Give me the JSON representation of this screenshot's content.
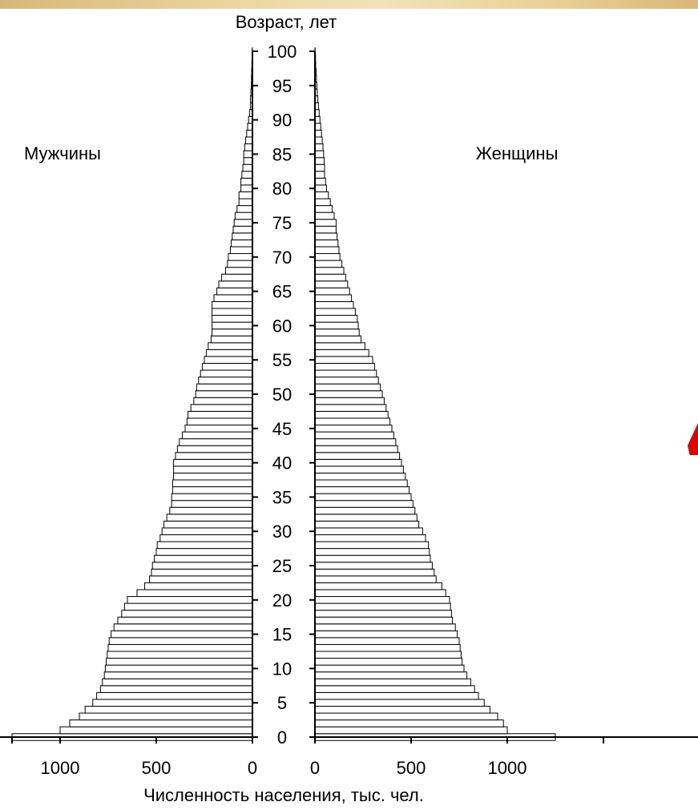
{
  "chart_data": {
    "type": "population-pyramid",
    "title": "Возраст, лет",
    "xlabel": "Численность населения, тыс. чел.",
    "male_label": "Мужчины",
    "female_label": "Женщины",
    "ages": [
      0,
      1,
      2,
      3,
      4,
      5,
      6,
      7,
      8,
      9,
      10,
      11,
      12,
      13,
      14,
      15,
      16,
      17,
      18,
      19,
      20,
      21,
      22,
      23,
      24,
      25,
      26,
      27,
      28,
      29,
      30,
      31,
      32,
      33,
      34,
      35,
      36,
      37,
      38,
      39,
      40,
      41,
      42,
      43,
      44,
      45,
      46,
      47,
      48,
      49,
      50,
      51,
      52,
      53,
      54,
      55,
      56,
      57,
      58,
      59,
      60,
      61,
      62,
      63,
      64,
      65,
      66,
      67,
      68,
      69,
      70,
      71,
      72,
      73,
      74,
      75,
      76,
      77,
      78,
      79,
      80,
      81,
      82,
      83,
      84,
      85,
      86,
      87,
      88,
      89,
      90,
      91,
      92,
      93,
      94,
      95,
      96,
      97,
      98,
      99,
      100
    ],
    "male": [
      1250,
      1000,
      950,
      900,
      870,
      830,
      810,
      790,
      780,
      770,
      765,
      760,
      755,
      750,
      745,
      735,
      720,
      700,
      680,
      665,
      650,
      600,
      560,
      535,
      525,
      520,
      510,
      500,
      495,
      480,
      470,
      460,
      445,
      430,
      420,
      420,
      415,
      415,
      410,
      410,
      410,
      400,
      390,
      380,
      365,
      350,
      340,
      335,
      320,
      305,
      295,
      290,
      280,
      270,
      260,
      250,
      240,
      230,
      215,
      210,
      210,
      210,
      210,
      210,
      200,
      185,
      175,
      160,
      140,
      130,
      125,
      115,
      110,
      105,
      100,
      95,
      90,
      80,
      70,
      70,
      60,
      60,
      55,
      50,
      45,
      45,
      40,
      35,
      30,
      25,
      20,
      15,
      10,
      10,
      8,
      6,
      5,
      4,
      3,
      2,
      1
    ],
    "female": [
      1250,
      1000,
      980,
      950,
      910,
      880,
      850,
      830,
      810,
      790,
      775,
      765,
      760,
      755,
      750,
      740,
      730,
      715,
      710,
      705,
      700,
      680,
      660,
      630,
      620,
      610,
      600,
      595,
      590,
      575,
      560,
      540,
      530,
      520,
      510,
      500,
      490,
      480,
      470,
      460,
      450,
      440,
      430,
      420,
      410,
      400,
      390,
      380,
      370,
      360,
      350,
      340,
      330,
      320,
      310,
      300,
      280,
      260,
      240,
      230,
      225,
      220,
      210,
      200,
      190,
      180,
      170,
      160,
      150,
      140,
      130,
      125,
      120,
      115,
      110,
      110,
      100,
      90,
      80,
      70,
      60,
      55,
      50,
      50,
      48,
      45,
      42,
      38,
      34,
      30,
      26,
      22,
      18,
      15,
      12,
      10,
      8,
      6,
      4,
      3,
      1
    ],
    "xticks_male": [
      1000,
      500,
      0
    ],
    "xticks_female": [
      0,
      500,
      1000
    ],
    "yticks": [
      0,
      5,
      10,
      15,
      20,
      25,
      30,
      35,
      40,
      45,
      50,
      55,
      60,
      65,
      70,
      75,
      80,
      85,
      90,
      95,
      100
    ],
    "xlim": [
      0,
      1250
    ],
    "ylim": [
      0,
      100
    ],
    "accent_color": "#e00000"
  }
}
